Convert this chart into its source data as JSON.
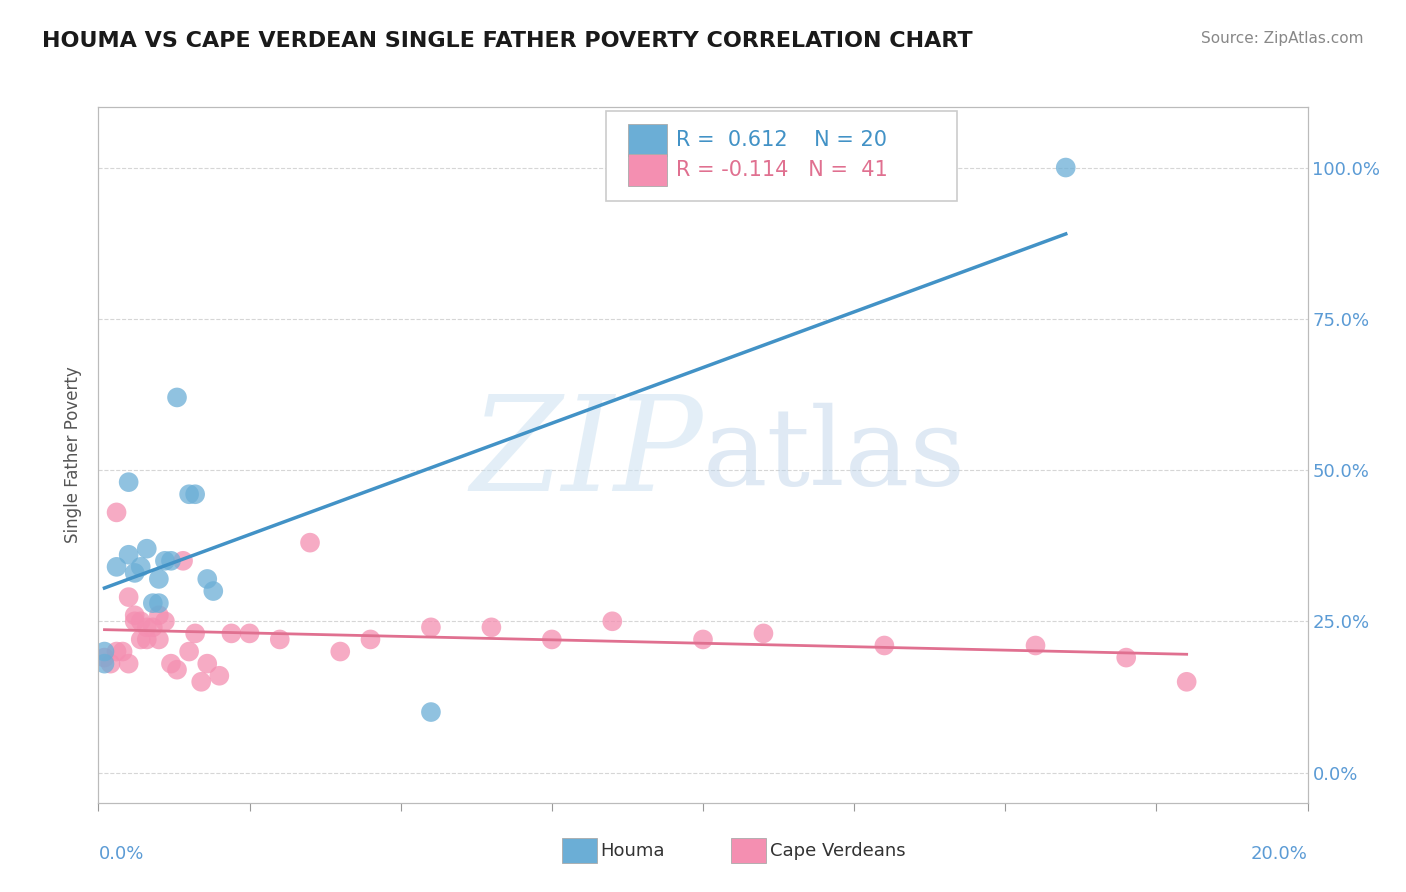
{
  "title": "HOUMA VS CAPE VERDEAN SINGLE FATHER POVERTY CORRELATION CHART",
  "source": "Source: ZipAtlas.com",
  "ylabel": "Single Father Poverty",
  "xlim": [
    0.0,
    0.2
  ],
  "ylim": [
    -0.05,
    1.1
  ],
  "right_yticks": [
    0.0,
    0.25,
    0.5,
    0.75,
    1.0
  ],
  "right_yticklabels": [
    "0.0%",
    "25.0%",
    "50.0%",
    "75.0%",
    "100.0%"
  ],
  "houma_R": 0.612,
  "houma_N": 20,
  "cape_R": -0.114,
  "cape_N": 41,
  "houma_color": "#6baed6",
  "cape_color": "#f48fb1",
  "houma_line_color": "#4292c6",
  "cape_line_color": "#e07090",
  "watermark_zip": "ZIP",
  "watermark_atlas": "atlas",
  "houma_x": [
    0.001,
    0.001,
    0.003,
    0.005,
    0.005,
    0.006,
    0.007,
    0.008,
    0.009,
    0.01,
    0.01,
    0.011,
    0.012,
    0.013,
    0.015,
    0.016,
    0.018,
    0.019,
    0.055,
    0.16
  ],
  "houma_y": [
    0.2,
    0.18,
    0.34,
    0.48,
    0.36,
    0.33,
    0.34,
    0.37,
    0.28,
    0.28,
    0.32,
    0.35,
    0.35,
    0.62,
    0.46,
    0.46,
    0.32,
    0.3,
    0.1,
    1.0
  ],
  "cape_x": [
    0.001,
    0.002,
    0.003,
    0.003,
    0.004,
    0.005,
    0.005,
    0.006,
    0.006,
    0.007,
    0.007,
    0.008,
    0.008,
    0.009,
    0.01,
    0.01,
    0.011,
    0.012,
    0.013,
    0.014,
    0.015,
    0.016,
    0.017,
    0.018,
    0.02,
    0.022,
    0.025,
    0.03,
    0.035,
    0.04,
    0.045,
    0.055,
    0.065,
    0.075,
    0.085,
    0.1,
    0.11,
    0.13,
    0.155,
    0.17,
    0.18
  ],
  "cape_y": [
    0.19,
    0.18,
    0.43,
    0.2,
    0.2,
    0.29,
    0.18,
    0.25,
    0.26,
    0.22,
    0.25,
    0.24,
    0.22,
    0.24,
    0.22,
    0.26,
    0.25,
    0.18,
    0.17,
    0.35,
    0.2,
    0.23,
    0.15,
    0.18,
    0.16,
    0.23,
    0.23,
    0.22,
    0.38,
    0.2,
    0.22,
    0.24,
    0.24,
    0.22,
    0.25,
    0.22,
    0.23,
    0.21,
    0.21,
    0.19,
    0.15
  ],
  "grid_color": "#cccccc",
  "grid_yticks": [
    0.0,
    0.25,
    0.5,
    0.75,
    1.0
  ],
  "xtick_positions": [
    0.0,
    0.025,
    0.05,
    0.075,
    0.1,
    0.125,
    0.15,
    0.175,
    0.2
  ],
  "title_fontsize": 16,
  "label_fontsize": 12,
  "tick_fontsize": 13,
  "legend_fontsize": 15
}
